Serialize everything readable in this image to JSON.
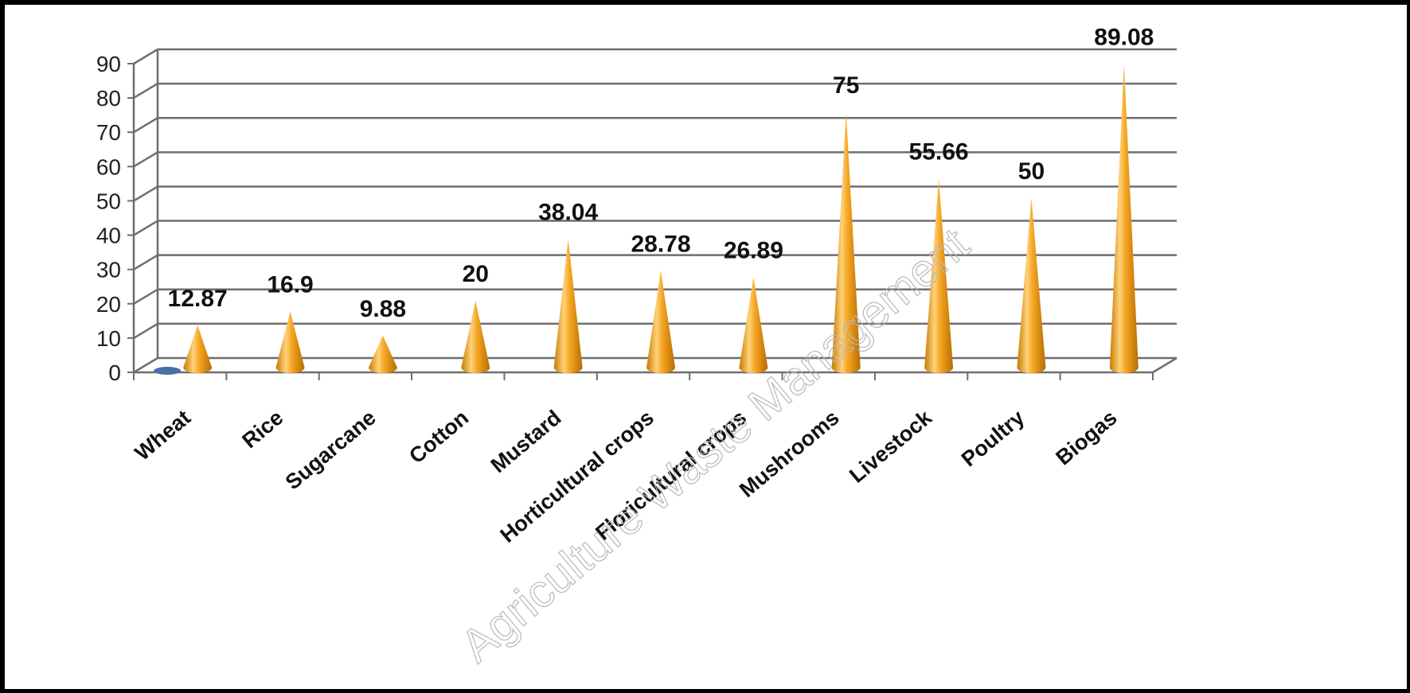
{
  "chart_data": {
    "type": "bar",
    "bar_shape": "cone",
    "categories": [
      "Wheat",
      "Rice",
      "Sugarcane",
      "Cotton",
      "Mustard",
      "Horticultural crops",
      "Floricultural crops",
      "Mushrooms",
      "Livestock",
      "Poultry",
      "Biogas"
    ],
    "values": [
      12.87,
      16.9,
      9.88,
      20,
      38.04,
      28.78,
      26.89,
      75,
      55.66,
      50,
      89.08
    ],
    "data_labels": [
      "12.87",
      "16.9",
      "9.88",
      "20",
      "38.04",
      "28.78",
      "26.89",
      "75",
      "55.66",
      "50",
      "89.08"
    ],
    "y_ticks": [
      "0",
      "10",
      "20",
      "30",
      "40",
      "50",
      "60",
      "70",
      "80",
      "90"
    ],
    "ylim": [
      0,
      90
    ],
    "grid": true,
    "legend": "none",
    "title": "",
    "xlabel": "",
    "ylabel": "",
    "colors": {
      "cone": "#f5a623",
      "cone_dark": "#c97a00",
      "cone_light": "#ffd27a",
      "grid": "#6e6e6e",
      "wheat_marker": "#4a6fa5"
    }
  },
  "watermark": "Agriculture Waste Management"
}
